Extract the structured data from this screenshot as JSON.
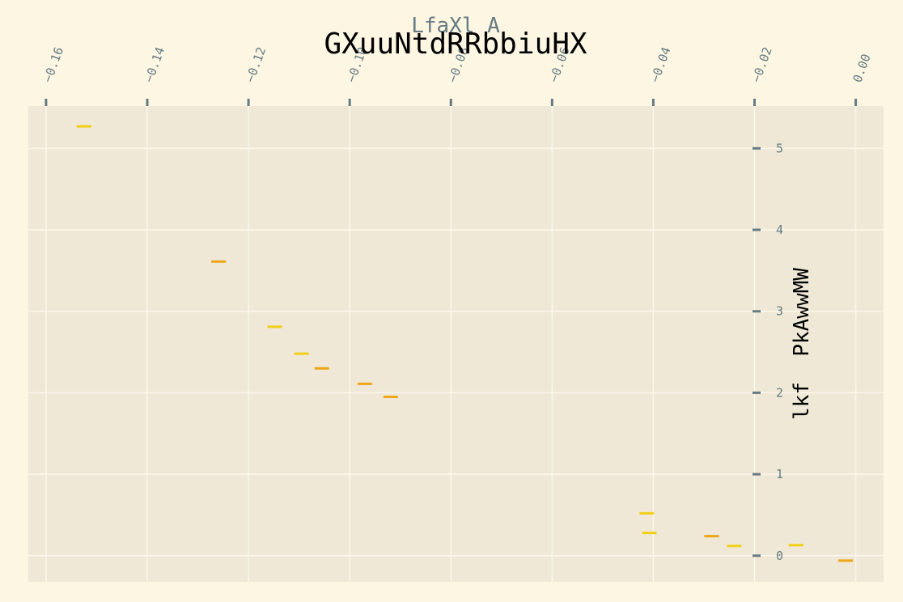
{
  "chart_data": {
    "type": "scatter",
    "title": "GXuuNtdRRbbiuHX",
    "subtitle": "LfaXl A",
    "xlabel": "",
    "ylabel": "lkf  PkAwwMW",
    "xlim": [
      -0.1635,
      0.0055
    ],
    "ylim": [
      -0.32,
      5.52
    ],
    "x_ticks": [
      -0.16,
      -0.14,
      -0.12,
      -0.1,
      -0.08,
      -0.06,
      -0.04,
      -0.02,
      0.0
    ],
    "x_tick_labels": [
      "−0.16",
      "−0.14",
      "−0.12",
      "−0.10",
      "−0.08",
      "−0.06",
      "−0.04",
      "−0.02",
      "0.00"
    ],
    "y_ticks": [
      0,
      1,
      2,
      3,
      4,
      5
    ],
    "y_tick_labels": [
      "0",
      "1",
      "2",
      "3",
      "4",
      "5"
    ],
    "x_axis_position": "top",
    "y_axis_position": "right",
    "grid": true,
    "marker": "hline",
    "colors": {
      "background": "#fdf6e3",
      "plot_bg": "#efe8d6",
      "grid": "#fbf7ec",
      "tick": "#657b83",
      "series_a": "#f2cf17",
      "series_b": "#eea617",
      "title": "#000000"
    },
    "series": [
      {
        "color": "#f2cf17",
        "points": [
          {
            "x": -0.1525,
            "y": 5.27
          },
          {
            "x": -0.1148,
            "y": 2.81
          },
          {
            "x": -0.1095,
            "y": 2.48
          },
          {
            "x": -0.0413,
            "y": 0.52
          },
          {
            "x": -0.0408,
            "y": 0.28
          },
          {
            "x": -0.024,
            "y": 0.12
          },
          {
            "x": -0.0118,
            "y": 0.13
          }
        ]
      },
      {
        "color": "#eea617",
        "points": [
          {
            "x": -0.1259,
            "y": 3.61
          },
          {
            "x": -0.1055,
            "y": 2.3
          },
          {
            "x": -0.097,
            "y": 2.11
          },
          {
            "x": -0.0919,
            "y": 1.95
          },
          {
            "x": -0.0285,
            "y": 0.24
          },
          {
            "x": -0.002,
            "y": -0.06
          }
        ]
      }
    ]
  }
}
